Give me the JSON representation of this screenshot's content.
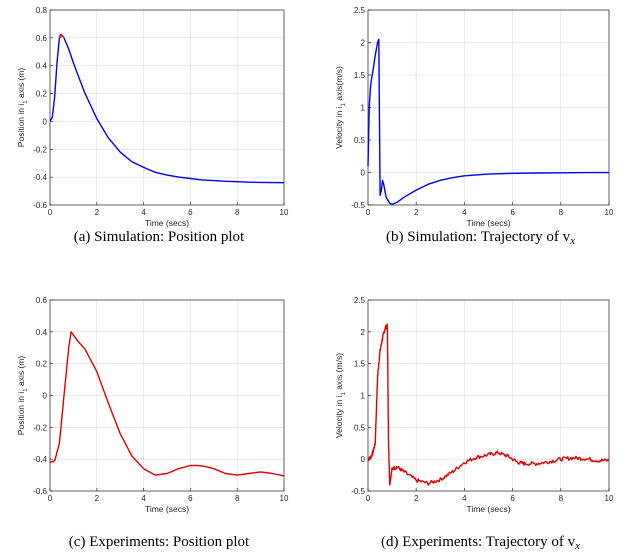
{
  "chart_data": [
    {
      "id": "a",
      "type": "line",
      "caption": "(a) Simulation: Position plot",
      "xlabel": "Time (secs)",
      "ylabel": "Position in i",
      "ylabel_sub": "1",
      "ylabel_rest": " axis (m)",
      "xlim": [
        0,
        10
      ],
      "ylim": [
        -0.6,
        0.8
      ],
      "xticks": [
        "0",
        "2",
        "4",
        "6",
        "8",
        "10"
      ],
      "yticks": [
        "-0.6",
        "-0.4",
        "-0.2",
        "0",
        "0.2",
        "0.4",
        "0.6",
        "0.8"
      ],
      "grid": true,
      "series": [
        {
          "color": "#0000ff",
          "x": [
            0,
            0.1,
            0.2,
            0.3,
            0.4,
            0.5,
            0.6,
            0.8,
            1.0,
            1.2,
            1.5,
            2.0,
            2.5,
            3.0,
            3.5,
            4.0,
            4.5,
            5.0,
            5.5,
            6.0,
            6.5,
            7.0,
            7.5,
            8.0,
            8.5,
            9.0,
            9.5,
            10.0
          ],
          "y": [
            0,
            0.03,
            0.18,
            0.42,
            0.6,
            0.62,
            0.6,
            0.52,
            0.42,
            0.33,
            0.2,
            0.02,
            -0.12,
            -0.22,
            -0.29,
            -0.33,
            -0.365,
            -0.385,
            -0.4,
            -0.41,
            -0.42,
            -0.425,
            -0.43,
            -0.433,
            -0.436,
            -0.438,
            -0.439,
            -0.44
          ]
        },
        {
          "color": "#ff0000",
          "x": [
            0.4,
            0.45,
            0.5,
            0.55,
            0.6
          ],
          "y": [
            0.6,
            0.625,
            0.62,
            0.61,
            0.6
          ]
        }
      ]
    },
    {
      "id": "b",
      "type": "line",
      "caption": "(b) Simulation: Trajectory of v",
      "caption_sub": "x",
      "xlabel": "Time (secs)",
      "ylabel": "Velocity in i",
      "ylabel_sub": "1",
      "ylabel_rest": " axis(m/s)",
      "xlim": [
        0,
        10
      ],
      "ylim": [
        -0.5,
        2.5
      ],
      "xticks": [
        "0",
        "2",
        "4",
        "6",
        "8",
        "10"
      ],
      "yticks": [
        "-0.5",
        "0",
        "0.5",
        "1",
        "1.5",
        "2",
        "2.5"
      ],
      "grid": true,
      "series": [
        {
          "color": "#0000ff",
          "x": [
            0,
            0.05,
            0.1,
            0.15,
            0.2,
            0.3,
            0.4,
            0.45,
            0.5,
            0.55,
            0.6,
            0.65,
            0.75,
            0.9,
            1.0,
            1.2,
            1.5,
            2.0,
            2.5,
            3.0,
            3.5,
            4.0,
            5.0,
            6.0,
            7.0,
            8.0,
            9.0,
            10.0
          ],
          "y": [
            0.1,
            1.0,
            1.3,
            1.45,
            1.55,
            1.8,
            2.0,
            2.05,
            -0.35,
            -0.28,
            -0.12,
            -0.18,
            -0.38,
            -0.47,
            -0.49,
            -0.46,
            -0.38,
            -0.27,
            -0.18,
            -0.12,
            -0.08,
            -0.05,
            -0.025,
            -0.012,
            -0.007,
            -0.004,
            -0.002,
            -0.001
          ]
        }
      ]
    },
    {
      "id": "c",
      "type": "line",
      "caption": "(c) Experiments: Position plot",
      "xlabel": "Time (secs)",
      "ylabel": "Position in i",
      "ylabel_sub": "1",
      "ylabel_rest": " axis (m)",
      "xlim": [
        0,
        10
      ],
      "ylim": [
        -0.6,
        0.6
      ],
      "xticks": [
        "0",
        "2",
        "4",
        "6",
        "8",
        "10"
      ],
      "yticks": [
        "-0.6",
        "-0.4",
        "-0.2",
        "0",
        "0.2",
        "0.4",
        "0.6"
      ],
      "grid": true,
      "series": [
        {
          "color": "#e00000",
          "x": [
            0,
            0.2,
            0.4,
            0.6,
            0.8,
            0.9,
            1.0,
            1.2,
            1.5,
            2.0,
            2.5,
            3.0,
            3.5,
            4.0,
            4.5,
            5.0,
            5.5,
            6.0,
            6.3,
            6.6,
            7.0,
            7.5,
            8.0,
            8.5,
            9.0,
            9.5,
            10.0
          ],
          "y": [
            -0.42,
            -0.41,
            -0.3,
            0.0,
            0.3,
            0.4,
            0.38,
            0.34,
            0.29,
            0.15,
            -0.05,
            -0.24,
            -0.38,
            -0.46,
            -0.5,
            -0.49,
            -0.46,
            -0.44,
            -0.44,
            -0.445,
            -0.46,
            -0.49,
            -0.5,
            -0.49,
            -0.48,
            -0.49,
            -0.505
          ]
        }
      ]
    },
    {
      "id": "d",
      "type": "line",
      "caption": "(d) Experiments: Trajectory of v",
      "caption_sub": "x",
      "xlabel": "Time (secs)",
      "ylabel": "Velocity in i",
      "ylabel_sub": "1",
      "ylabel_rest": " axis (m/s)",
      "xlim": [
        0,
        10
      ],
      "ylim": [
        -0.5,
        2.5
      ],
      "xticks": [
        "0",
        "2",
        "4",
        "6",
        "8",
        "10"
      ],
      "yticks": [
        "-0.5",
        "0",
        "0.5",
        "1",
        "1.5",
        "2",
        "2.5"
      ],
      "grid": true,
      "series": [
        {
          "color": "#e00000",
          "noise": true,
          "x": [
            0,
            0.1,
            0.2,
            0.3,
            0.4,
            0.5,
            0.6,
            0.7,
            0.8,
            0.82,
            0.85,
            0.9,
            1.0,
            1.2,
            1.5,
            2.0,
            2.5,
            3.0,
            3.5,
            4.0,
            4.5,
            5.0,
            5.4,
            5.8,
            6.2,
            6.5,
            7.0,
            7.5,
            8.0,
            8.5,
            9.0,
            9.5,
            10.0
          ],
          "y": [
            0,
            0.02,
            0.1,
            0.25,
            1.3,
            1.7,
            1.9,
            2.05,
            2.1,
            1.5,
            0.3,
            -0.4,
            -0.15,
            -0.12,
            -0.2,
            -0.33,
            -0.38,
            -0.32,
            -0.2,
            -0.05,
            0.03,
            0.07,
            0.1,
            0.05,
            -0.05,
            -0.07,
            -0.07,
            -0.04,
            0.0,
            0.02,
            0.01,
            -0.02,
            -0.02
          ]
        }
      ]
    }
  ]
}
